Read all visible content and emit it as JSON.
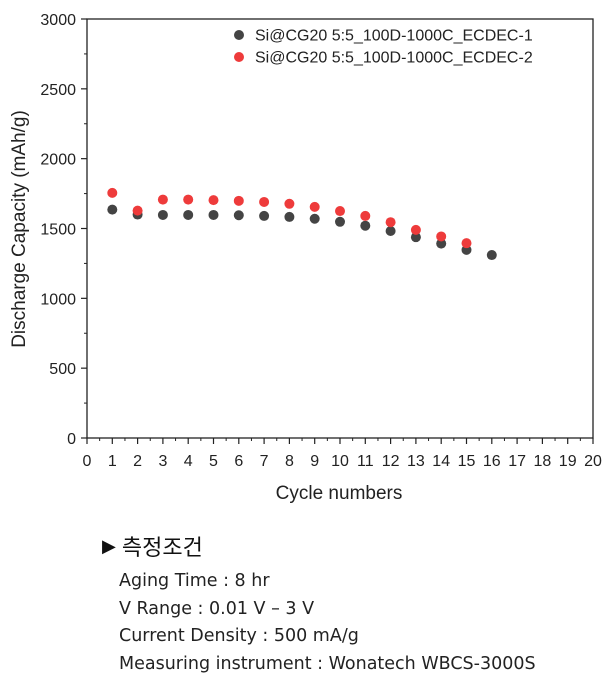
{
  "chart_data": {
    "type": "scatter",
    "title": "",
    "xlabel": "Cycle numbers",
    "ylabel": "Discharge Capacity (mAh/g)",
    "xlim": [
      0,
      20
    ],
    "ylim": [
      0,
      3000
    ],
    "x_ticks": [
      0,
      1,
      2,
      3,
      4,
      5,
      6,
      7,
      8,
      9,
      10,
      11,
      12,
      13,
      14,
      15,
      16,
      17,
      18,
      19,
      20
    ],
    "y_ticks": [
      0,
      500,
      1000,
      1500,
      2000,
      2500,
      3000
    ],
    "grid": false,
    "legend_position": "top-right",
    "series": [
      {
        "name": "Si@CG20 5:5_100D-1000C_ECDEC-1",
        "color": "#444444",
        "x": [
          1,
          2,
          3,
          4,
          5,
          6,
          7,
          8,
          9,
          10,
          11,
          12,
          13,
          14,
          15,
          16
        ],
        "y": [
          1635,
          1600,
          1597,
          1597,
          1597,
          1595,
          1590,
          1583,
          1570,
          1548,
          1520,
          1482,
          1438,
          1392,
          1347,
          1310
        ]
      },
      {
        "name": "Si@CG20 5:5_100D-1000C_ECDEC-2",
        "color": "#ee3b3b",
        "x": [
          1,
          2,
          3,
          4,
          5,
          6,
          7,
          8,
          9,
          10,
          11,
          12,
          13,
          14,
          15
        ],
        "y": [
          1755,
          1628,
          1707,
          1707,
          1703,
          1698,
          1690,
          1677,
          1655,
          1625,
          1590,
          1545,
          1490,
          1443,
          1395
        ]
      }
    ]
  },
  "conditions": {
    "header": "측정조건",
    "lines": [
      "Aging Time : 8 hr",
      "V Range : 0.01 V – 3 V",
      "Current Density : 500 mA/g",
      "Measuring instrument : Wonatech WBCS-3000S"
    ]
  }
}
